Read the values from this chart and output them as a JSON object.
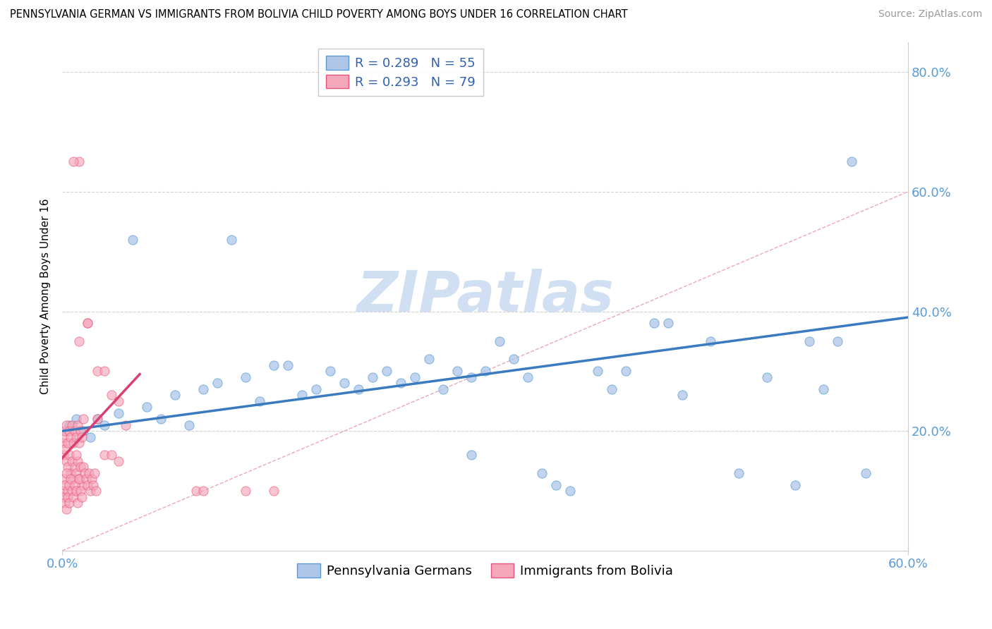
{
  "title": "PENNSYLVANIA GERMAN VS IMMIGRANTS FROM BOLIVIA CHILD POVERTY AMONG BOYS UNDER 16 CORRELATION CHART",
  "source": "Source: ZipAtlas.com",
  "ylabel": "Child Poverty Among Boys Under 16",
  "legend_blue_r": "R = 0.289",
  "legend_blue_n": "N = 55",
  "legend_pink_r": "R = 0.293",
  "legend_pink_n": "N = 79",
  "blue_color": "#aec6e8",
  "blue_edge_color": "#5b9bd5",
  "pink_color": "#f4a7bb",
  "pink_edge_color": "#e8547a",
  "blue_trend_color": "#3a7abf",
  "pink_trend_color": "#d94070",
  "diagonal_color": "#e8a0b0",
  "watermark_color": "#c5d8ef",
  "xlim": [
    0.0,
    0.6
  ],
  "ylim": [
    0.0,
    0.85
  ],
  "yticks": [
    0.2,
    0.4,
    0.6,
    0.8
  ],
  "ytick_labels": [
    "20.0%",
    "40.0%",
    "60.0%",
    "80.0%"
  ],
  "blue_trend_x0": 0.0,
  "blue_trend_y0": 0.2,
  "blue_trend_x1": 0.6,
  "blue_trend_y1": 0.39,
  "pink_trend_x0": 0.0,
  "pink_trend_y0": 0.155,
  "pink_trend_x1": 0.055,
  "pink_trend_y1": 0.295,
  "blue_pts_x": [
    0.005,
    0.01,
    0.015,
    0.02,
    0.025,
    0.03,
    0.04,
    0.05,
    0.06,
    0.07,
    0.08,
    0.09,
    0.1,
    0.11,
    0.12,
    0.13,
    0.14,
    0.15,
    0.16,
    0.17,
    0.18,
    0.19,
    0.2,
    0.21,
    0.22,
    0.23,
    0.24,
    0.25,
    0.26,
    0.27,
    0.28,
    0.29,
    0.3,
    0.31,
    0.32,
    0.33,
    0.34,
    0.35,
    0.36,
    0.38,
    0.4,
    0.42,
    0.44,
    0.46,
    0.48,
    0.5,
    0.52,
    0.53,
    0.54,
    0.55,
    0.56,
    0.57,
    0.43,
    0.39,
    0.29
  ],
  "blue_pts_y": [
    0.21,
    0.22,
    0.2,
    0.19,
    0.22,
    0.21,
    0.23,
    0.52,
    0.24,
    0.22,
    0.26,
    0.21,
    0.27,
    0.28,
    0.52,
    0.29,
    0.25,
    0.31,
    0.31,
    0.26,
    0.27,
    0.3,
    0.28,
    0.27,
    0.29,
    0.3,
    0.28,
    0.29,
    0.32,
    0.27,
    0.3,
    0.29,
    0.3,
    0.35,
    0.32,
    0.29,
    0.13,
    0.11,
    0.1,
    0.3,
    0.3,
    0.38,
    0.26,
    0.35,
    0.13,
    0.29,
    0.11,
    0.35,
    0.27,
    0.35,
    0.65,
    0.13,
    0.38,
    0.27,
    0.16
  ],
  "pink_pts_x": [
    0.0,
    0.001,
    0.001,
    0.002,
    0.002,
    0.003,
    0.003,
    0.004,
    0.004,
    0.005,
    0.005,
    0.006,
    0.006,
    0.007,
    0.007,
    0.008,
    0.008,
    0.009,
    0.009,
    0.01,
    0.01,
    0.011,
    0.011,
    0.012,
    0.012,
    0.013,
    0.013,
    0.014,
    0.014,
    0.015,
    0.0,
    0.001,
    0.001,
    0.002,
    0.002,
    0.003,
    0.003,
    0.004,
    0.004,
    0.005,
    0.005,
    0.006,
    0.007,
    0.008,
    0.009,
    0.01,
    0.011,
    0.012,
    0.013,
    0.014,
    0.015,
    0.016,
    0.017,
    0.018,
    0.019,
    0.02,
    0.021,
    0.022,
    0.023,
    0.024,
    0.025,
    0.012,
    0.018,
    0.025,
    0.03,
    0.035,
    0.04,
    0.045,
    0.012,
    0.018,
    0.095,
    0.1,
    0.13,
    0.15,
    0.03,
    0.035,
    0.04,
    0.01,
    0.008
  ],
  "pink_pts_y": [
    0.18,
    0.19,
    0.16,
    0.2,
    0.17,
    0.21,
    0.15,
    0.18,
    0.14,
    0.2,
    0.16,
    0.19,
    0.13,
    0.21,
    0.15,
    0.18,
    0.12,
    0.2,
    0.14,
    0.19,
    0.13,
    0.21,
    0.15,
    0.18,
    0.12,
    0.2,
    0.14,
    0.19,
    0.11,
    0.22,
    0.1,
    0.12,
    0.09,
    0.11,
    0.08,
    0.13,
    0.07,
    0.1,
    0.09,
    0.11,
    0.08,
    0.12,
    0.1,
    0.09,
    0.11,
    0.1,
    0.08,
    0.12,
    0.1,
    0.09,
    0.14,
    0.13,
    0.12,
    0.11,
    0.13,
    0.1,
    0.12,
    0.11,
    0.13,
    0.1,
    0.22,
    0.35,
    0.38,
    0.3,
    0.3,
    0.26,
    0.25,
    0.21,
    0.65,
    0.38,
    0.1,
    0.1,
    0.1,
    0.1,
    0.16,
    0.16,
    0.15,
    0.16,
    0.65
  ]
}
